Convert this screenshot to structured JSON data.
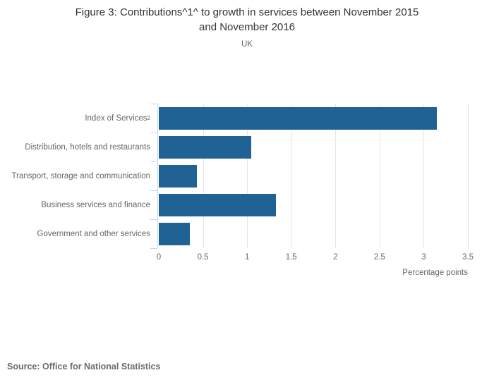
{
  "header": {
    "title_line1": "Figure 3: Contributions^1^ to growth in services between November 2015",
    "title_line2": "and November 2016",
    "subtitle": "UK"
  },
  "chart_data": {
    "type": "bar",
    "orientation": "horizontal",
    "title": "Figure 3: Contributions^1^ to growth in services between November 2015 and November 2016",
    "subtitle": "UK",
    "categories": [
      "Index of Services",
      "Distribution, hotels and restaurants",
      "Transport, storage and communication",
      "Business services and finance",
      "Government and other services"
    ],
    "category_superscripts": [
      "2",
      "",
      "",
      "",
      ""
    ],
    "values": [
      3.15,
      1.05,
      0.43,
      1.33,
      0.35
    ],
    "xlabel": "Percentage points",
    "ylabel": "",
    "xlim": [
      0,
      3.5
    ],
    "xticks": [
      0,
      0.5,
      1,
      1.5,
      2,
      2.5,
      3,
      3.5
    ],
    "xtick_labels": [
      "0",
      "0.5",
      "1",
      "1.5",
      "2",
      "2.5",
      "3",
      "3.5"
    ],
    "grid": true,
    "legend": "none",
    "bar_color": "#216295"
  },
  "footer": {
    "source": "Source: Office for National Statistics"
  },
  "colors": {
    "bar": "#216295",
    "gridline": "#e6e6e6",
    "axis_line": "#ccd6eb",
    "title_text": "#333333",
    "label_text": "#666666",
    "source_text": "#6b6b6b",
    "background": "#ffffff"
  }
}
